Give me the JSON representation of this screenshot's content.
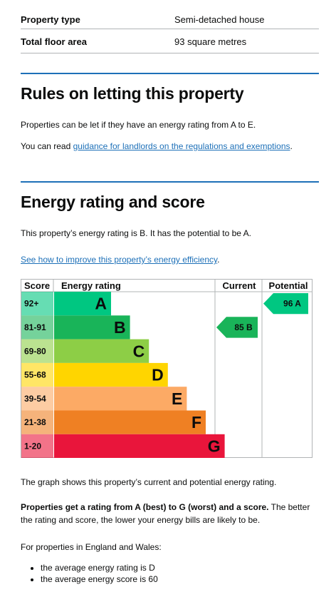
{
  "summary": [
    {
      "key": "Property type",
      "value": "Semi-detached house"
    },
    {
      "key": "Total floor area",
      "value": "93 square metres"
    }
  ],
  "letting": {
    "heading": "Rules on letting this property",
    "p1": "Properties can be let if they have an energy rating from A to E.",
    "p2_prefix": "You can read ",
    "p2_link": "guidance for landlords on the regulations and exemptions",
    "p2_suffix": "."
  },
  "energy": {
    "heading": "Energy rating and score",
    "p1": "This property’s energy rating is B. It has the potential to be A.",
    "link": "See how to improve this property’s energy efficiency",
    "link_suffix": ".",
    "graph_caption": "The graph shows this property’s current and potential energy rating.",
    "explain_bold": "Properties get a rating from A (best) to G (worst) and a score.",
    "explain_rest": " The better the rating and score, the lower your energy bills are likely to be.",
    "averages_intro": "For properties in England and Wales:",
    "averages": [
      "the average energy rating is D",
      "the average energy score is 60"
    ]
  },
  "chart_data": {
    "type": "bar",
    "headers": {
      "score": "Score",
      "rating": "Energy rating",
      "current": "Current",
      "potential": "Potential"
    },
    "bands": [
      {
        "letter": "A",
        "range": "92+",
        "color": "#00c781"
      },
      {
        "letter": "B",
        "range": "81-91",
        "color": "#19b459"
      },
      {
        "letter": "C",
        "range": "69-80",
        "color": "#8dce46"
      },
      {
        "letter": "D",
        "range": "55-68",
        "color": "#ffd500"
      },
      {
        "letter": "E",
        "range": "39-54",
        "color": "#fcaa65"
      },
      {
        "letter": "F",
        "range": "21-38",
        "color": "#ef8023"
      },
      {
        "letter": "G",
        "range": "1-20",
        "color": "#e9153b"
      }
    ],
    "current": {
      "score": 85,
      "letter": "B",
      "label": "85 B",
      "color": "#19b459"
    },
    "potential": {
      "score": 96,
      "letter": "A",
      "label": "96 A",
      "color": "#00c781"
    }
  }
}
